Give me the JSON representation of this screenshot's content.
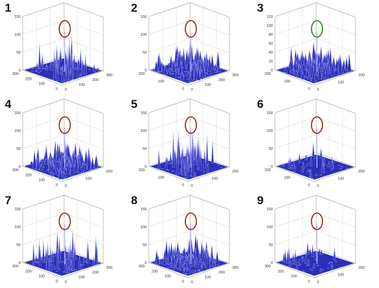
{
  "figure": {
    "panels": [
      {
        "number": "1",
        "z_ticks": [
          "0",
          "50",
          "100",
          "150"
        ],
        "x_ticks": [
          "0",
          "100",
          "200",
          "300"
        ],
        "y_ticks": [
          "0",
          "100",
          "200",
          "300"
        ],
        "marker_color": "#8b2a16",
        "style": "spiky"
      },
      {
        "number": "2",
        "z_ticks": [
          "0",
          "50",
          "100",
          "150"
        ],
        "x_ticks": [
          "0",
          "100",
          "200",
          "300"
        ],
        "y_ticks": [
          "0",
          "100",
          "200"
        ],
        "marker_color": "#8b2a16",
        "style": "dense"
      },
      {
        "number": "3",
        "z_ticks": [
          "0",
          "20",
          "40",
          "60",
          "80",
          "100",
          "120"
        ],
        "x_ticks": [
          "0",
          "100",
          "200"
        ],
        "y_ticks": [
          "0",
          "100",
          "200"
        ],
        "marker_color": "#2f7f1f",
        "style": "dense"
      },
      {
        "number": "4",
        "z_ticks": [
          "0",
          "50",
          "100",
          "150"
        ],
        "x_ticks": [
          "0",
          "100",
          "200"
        ],
        "y_ticks": [
          "0",
          "100",
          "200",
          "300"
        ],
        "marker_color": "#8b2a16",
        "style": "dense"
      },
      {
        "number": "5",
        "z_ticks": [
          "0",
          "50",
          "100",
          "150"
        ],
        "x_ticks": [
          "0",
          "100",
          "200"
        ],
        "y_ticks": [
          "0",
          "100",
          "200"
        ],
        "marker_color": "#8b2a16",
        "style": "spiky"
      },
      {
        "number": "6",
        "z_ticks": [
          "0",
          "50",
          "100",
          "150"
        ],
        "x_ticks": [
          "0",
          "100",
          "200"
        ],
        "y_ticks": [
          "0",
          "100",
          "200"
        ],
        "marker_color": "#8b2a16",
        "style": "sparse"
      },
      {
        "number": "7",
        "z_ticks": [
          "0",
          "50",
          "100",
          "150"
        ],
        "x_ticks": [
          "0",
          "100",
          "200",
          "300"
        ],
        "y_ticks": [
          "0",
          "100",
          "200",
          "300"
        ],
        "marker_color": "#8b2a16",
        "style": "spiky"
      },
      {
        "number": "8",
        "z_ticks": [
          "0",
          "50",
          "100",
          "150"
        ],
        "x_ticks": [
          "0",
          "100",
          "200",
          "300"
        ],
        "y_ticks": [
          "0",
          "100",
          "200",
          "300"
        ],
        "marker_color": "#8b2a16",
        "style": "dense"
      },
      {
        "number": "9",
        "z_ticks": [
          "0",
          "50",
          "100",
          "150"
        ],
        "x_ticks": [
          "0",
          "100",
          "200"
        ],
        "y_ticks": [
          "0",
          "100",
          "200",
          "300"
        ],
        "marker_color": "#8b2a16",
        "style": "sparse"
      }
    ]
  },
  "colors": {
    "surface_fill": "#2b2fb8",
    "surface_edge": "#bfc4ff",
    "axis_line": "#9a9a9a",
    "grid_line": "#d4d4d4",
    "number_text": "#111111"
  }
}
